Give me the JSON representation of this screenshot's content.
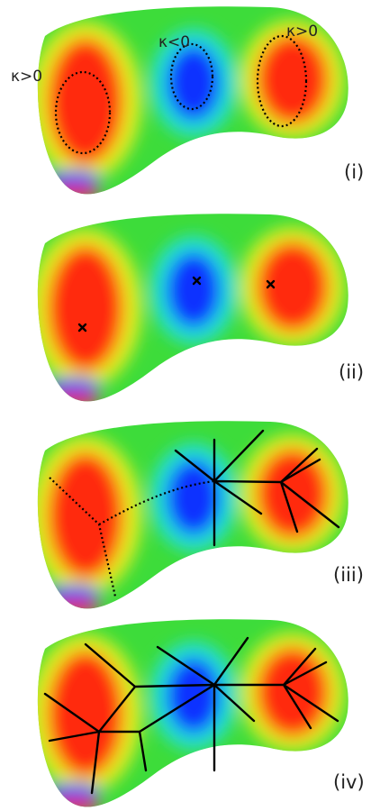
{
  "labels": {
    "positive_left": "κ>0",
    "negative": "κ<0",
    "positive_right": "κ>0"
  },
  "panels": [
    "(i)",
    "(ii)",
    "(iii)",
    "(iv)"
  ]
}
